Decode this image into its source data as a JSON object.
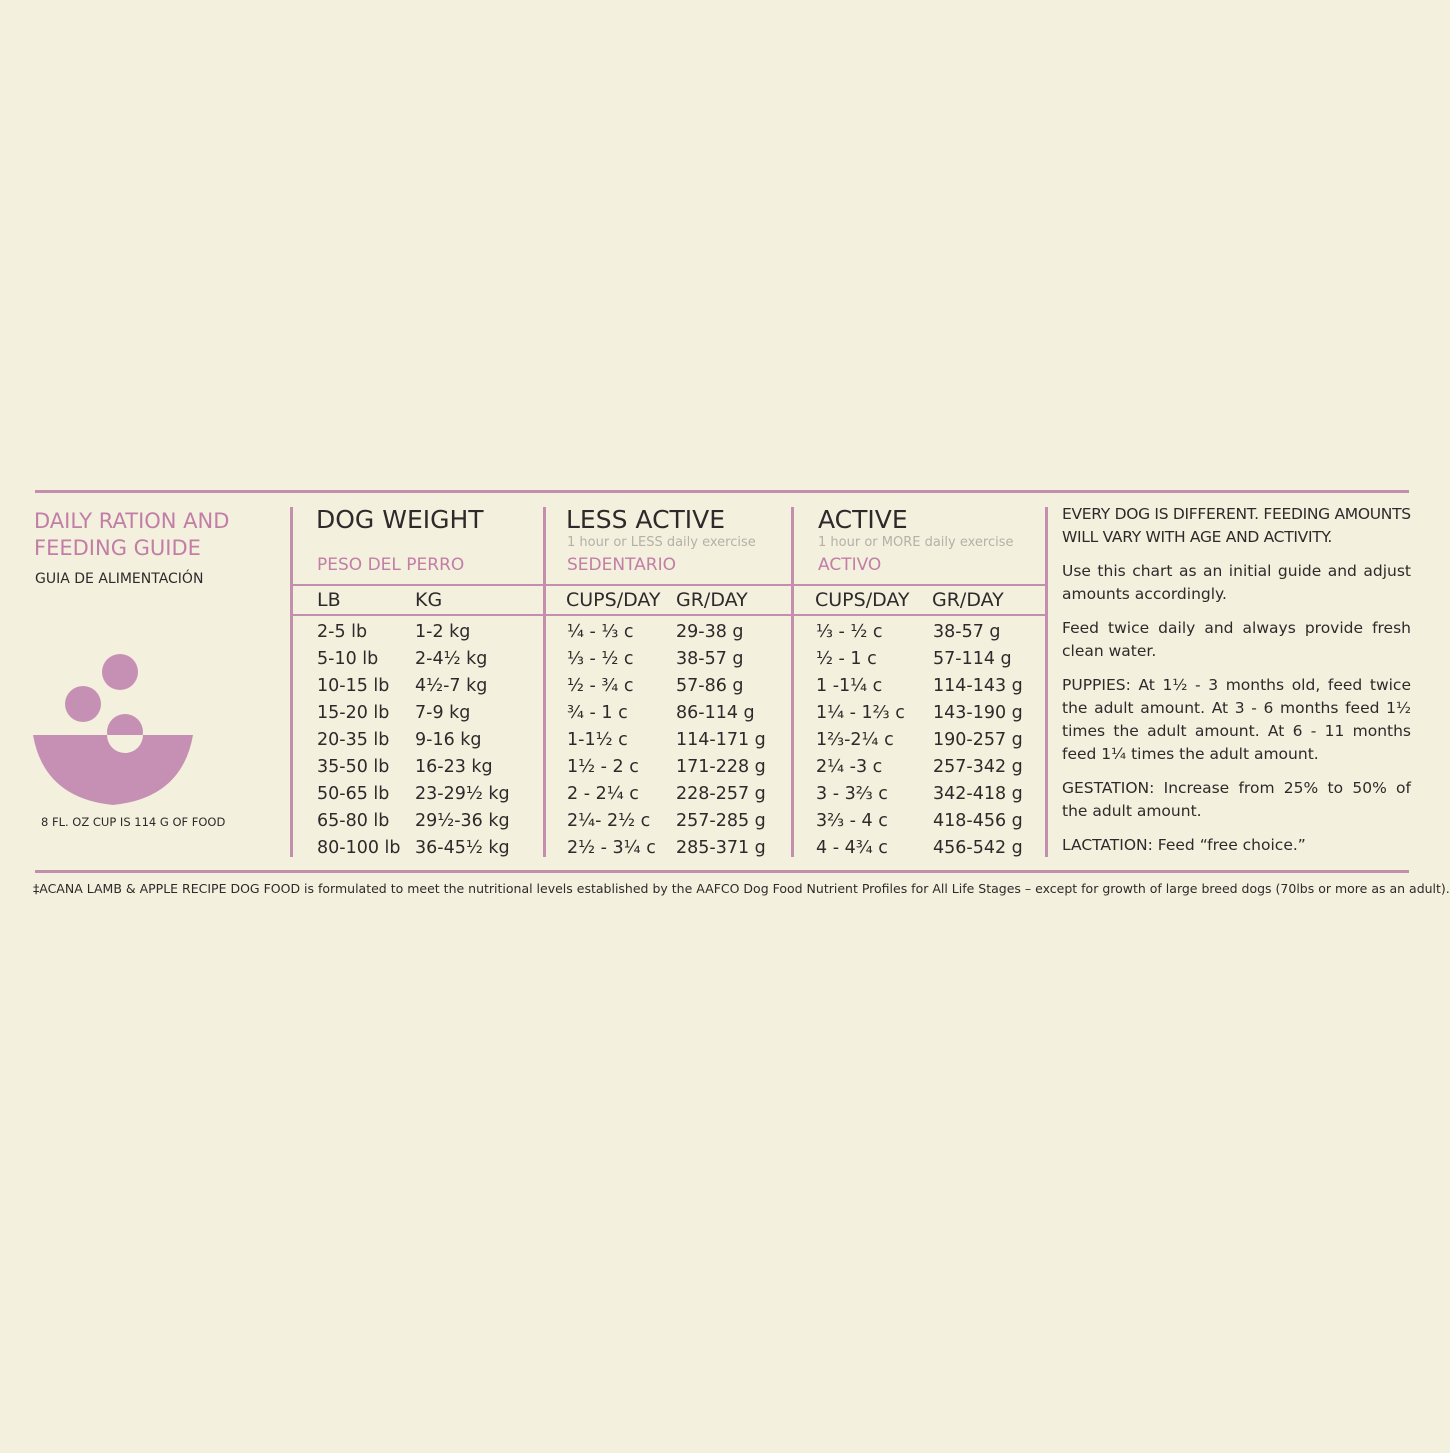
{
  "guide": {
    "title_line1": "DAILY RATION AND",
    "title_line2": "FEEDING GUIDE",
    "subtitle": "GUIA DE ALIMENTACIÓN",
    "cup_note": "8 FL. OZ CUP IS 114 G OF FOOD"
  },
  "columns": {
    "weight": {
      "title": "DOG WEIGHT",
      "spanish": "PESO DEL PERRO",
      "sub1": "LB",
      "sub2": "KG"
    },
    "less_active": {
      "title": "LESS ACTIVE",
      "desc": "1 hour or LESS daily exercise",
      "spanish": "SEDENTARIO",
      "sub1": "CUPS/DAY",
      "sub2": "GR/DAY"
    },
    "active": {
      "title": "ACTIVE",
      "desc": "1 hour or MORE daily exercise",
      "spanish": "ACTIVO",
      "sub1": "CUPS/DAY",
      "sub2": "GR/DAY"
    }
  },
  "rows": [
    {
      "lb": "2-5 lb",
      "kg": "1-2 kg",
      "la_cups": "¼ - ⅓ c",
      "la_gr": "29-38 g",
      "a_cups": "⅓ - ½ c",
      "a_gr": "38-57 g"
    },
    {
      "lb": "5-10 lb",
      "kg": "2-4½ kg",
      "la_cups": "⅓ - ½ c",
      "la_gr": "38-57 g",
      "a_cups": "½ - 1 c",
      "a_gr": "57-114 g"
    },
    {
      "lb": "10-15 lb",
      "kg": "4½-7 kg",
      "la_cups": "½ - ¾ c",
      "la_gr": "57-86 g",
      "a_cups": "1 -1¼ c",
      "a_gr": "114-143 g"
    },
    {
      "lb": "15-20 lb",
      "kg": "7-9 kg",
      "la_cups": "¾ - 1 c",
      "la_gr": "86-114 g",
      "a_cups": "1¼ - 1⅔ c",
      "a_gr": "143-190 g"
    },
    {
      "lb": "20-35 lb",
      "kg": "9-16 kg",
      "la_cups": "1-1½ c",
      "la_gr": "114-171 g",
      "a_cups": "1⅔-2¼ c",
      "a_gr": "190-257 g"
    },
    {
      "lb": "35-50 lb",
      "kg": "16-23 kg",
      "la_cups": "1½ - 2 c",
      "la_gr": "171-228 g",
      "a_cups": "2¼ -3 c",
      "a_gr": "257-342 g"
    },
    {
      "lb": "50-65 lb",
      "kg": "23-29½ kg",
      "la_cups": "2 - 2¼ c",
      "la_gr": "228-257 g",
      "a_cups": "3 - 3⅔ c",
      "a_gr": "342-418 g"
    },
    {
      "lb": "65-80 lb",
      "kg": "29½-36 kg",
      "la_cups": "2¼- 2½ c",
      "la_gr": "257-285 g",
      "a_cups": "3⅔ - 4 c",
      "a_gr": "418-456 g"
    },
    {
      "lb": "80-100 lb",
      "kg": "36-45½ kg",
      "la_cups": "2½ - 3¼ c",
      "la_gr": "285-371 g",
      "a_cups": "4 - 4¾ c",
      "a_gr": "456-542 g"
    }
  ],
  "notes": [
    "EVERY DOG IS DIFFERENT. FEEDING AMOUNTS WILL VARY WITH AGE AND ACTIVITY.",
    "Use this chart as an initial guide and adjust amounts accordingly.",
    "Feed twice daily and always provide fresh clean water.",
    "PUPPIES: At 1½ - 3 months old, feed twice the adult amount. At 3 - 6 months feed 1½ times the adult amount. At 6 - 11 months feed 1¼ times the adult amount.",
    "GESTATION: Increase from 25% to 50% of the adult amount.",
    "LACTATION: Feed “free choice.”"
  ],
  "footnote": "‡ACANA LAMB & APPLE RECIPE DOG FOOD is formulated to meet the nutritional levels established by the AAFCO Dog Food Nutrient Profiles for All Life Stages – except for growth of large breed dogs (70lbs or more as an adult).",
  "colors": {
    "accent": "#c48fae",
    "background": "#f3f0dd",
    "bowl": "#c690b4"
  }
}
